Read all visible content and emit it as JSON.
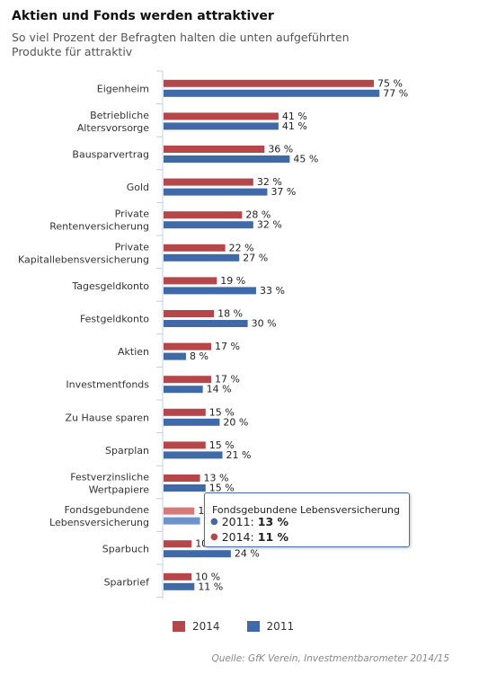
{
  "title": "Aktien und Fonds werden attraktiver",
  "subtitle": "So viel Prozent der Befragten halten die unten aufgeführten Produkte für attraktiv",
  "colors": {
    "series_2014": "#b5474b",
    "series_2011": "#3f6aa7",
    "series_2014_hover": "#d87a7a",
    "series_2011_hover": "#6d95cc",
    "axis": "#c0d0e0"
  },
  "chart_data": {
    "type": "bar",
    "orientation": "horizontal",
    "title": "Aktien und Fonds werden attraktiver",
    "subtitle": "So viel Prozent der Befragten halten die unten aufgeführten Produkte für attraktiv",
    "categories": [
      [
        "Eigenheim"
      ],
      [
        "Betriebliche",
        "Altersvorsorge"
      ],
      [
        "Bausparvertrag"
      ],
      [
        "Gold"
      ],
      [
        "Private",
        "Rentenversicherung"
      ],
      [
        "Private",
        "Kapitallebensversicherung"
      ],
      [
        "Tagesgeldkonto"
      ],
      [
        "Festgeldkonto"
      ],
      [
        "Aktien"
      ],
      [
        "Investmentfonds"
      ],
      [
        "Zu Hause sparen"
      ],
      [
        "Sparplan"
      ],
      [
        "Festverzinsliche",
        "Wertpapiere"
      ],
      [
        "Fondsgebundene",
        "Lebensversicherung"
      ],
      [
        "Sparbuch"
      ],
      [
        "Sparbrief"
      ]
    ],
    "series": [
      {
        "name": "2014",
        "values": [
          75,
          41,
          36,
          32,
          28,
          22,
          19,
          18,
          17,
          17,
          15,
          15,
          13,
          11,
          10,
          10
        ]
      },
      {
        "name": "2011",
        "values": [
          77,
          41,
          45,
          37,
          32,
          27,
          33,
          30,
          8,
          14,
          20,
          21,
          15,
          13,
          24,
          11
        ]
      }
    ],
    "value_suffix": " %",
    "xlim": [
      0,
      100
    ],
    "grid": false,
    "legend": "bottom",
    "highlighted_category_index": 13
  },
  "legend": {
    "items": [
      {
        "label": "2014"
      },
      {
        "label": "2011"
      }
    ]
  },
  "tooltip": {
    "title": "Fondsgebundene Lebensversicherung",
    "rows": [
      {
        "label": "2011:",
        "value": "13 %"
      },
      {
        "label": "2014:",
        "value": "11 %"
      }
    ]
  },
  "source": "Quelle: GfK Verein, Investmentbarometer 2014/15"
}
